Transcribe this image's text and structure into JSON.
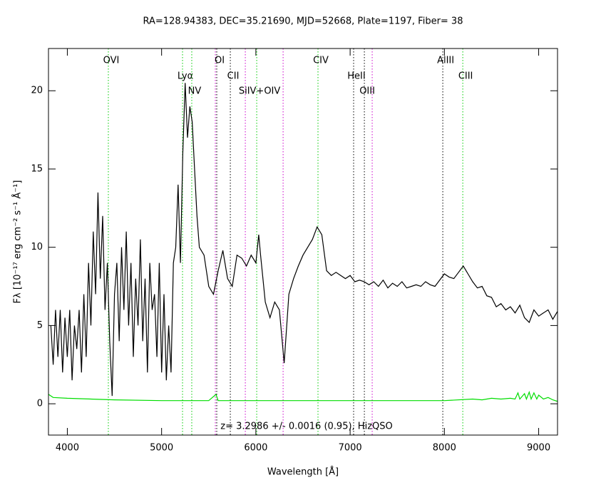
{
  "chart_data": {
    "type": "line",
    "title": "RA=128.94383, DEC=35.21690, MJD=52668, Plate=1197, Fiber= 38",
    "x_label": "Wavelength [Å]",
    "y_label": "Fλ [10⁻¹⁷ erg cm⁻² s⁻¹ Å⁻¹]",
    "annotation": "z= 3.2986 +/- 0.0016 (0.95), HizQSO",
    "xlim": [
      3800,
      9200
    ],
    "ylim": [
      -2,
      22.7
    ],
    "xticks": [
      4000,
      5000,
      6000,
      7000,
      8000,
      9000
    ],
    "yticks": [
      0,
      5,
      10,
      15,
      20
    ],
    "series": [
      {
        "color": "#000000",
        "x": [
          3825,
          3850,
          3875,
          3900,
          3925,
          3950,
          3975,
          4000,
          4025,
          4050,
          4075,
          4100,
          4125,
          4150,
          4175,
          4200,
          4225,
          4250,
          4275,
          4300,
          4325,
          4350,
          4375,
          4400,
          4425,
          4450,
          4475,
          4500,
          4525,
          4550,
          4575,
          4600,
          4625,
          4650,
          4675,
          4700,
          4725,
          4750,
          4775,
          4800,
          4825,
          4850,
          4875,
          4900,
          4925,
          4950,
          4975,
          5000,
          5025,
          5050,
          5075,
          5100,
          5125,
          5150,
          5175,
          5200,
          5225,
          5250,
          5275,
          5300,
          5325,
          5350,
          5375,
          5400,
          5450,
          5500,
          5550,
          5600,
          5650,
          5700,
          5750,
          5800,
          5850,
          5900,
          5950,
          6000,
          6030,
          6050,
          6100,
          6150,
          6200,
          6250,
          6300,
          6350,
          6400,
          6450,
          6500,
          6550,
          6600,
          6650,
          6700,
          6750,
          6800,
          6850,
          6900,
          6950,
          7000,
          7050,
          7100,
          7150,
          7200,
          7250,
          7300,
          7350,
          7400,
          7450,
          7500,
          7550,
          7600,
          7650,
          7700,
          7750,
          7800,
          7850,
          7900,
          7950,
          8000,
          8050,
          8100,
          8150,
          8200,
          8250,
          8300,
          8350,
          8400,
          8450,
          8500,
          8550,
          8600,
          8650,
          8700,
          8750,
          8800,
          8850,
          8900,
          8950,
          9000,
          9050,
          9100,
          9150,
          9200
        ],
        "values": [
          5,
          2.5,
          6,
          3,
          6,
          2,
          5.5,
          3,
          6,
          1.5,
          5,
          3.5,
          6,
          2,
          7,
          3,
          9,
          5,
          11,
          7,
          13.5,
          8,
          12,
          6,
          9,
          4,
          0.5,
          7,
          9,
          4,
          10,
          6,
          11,
          5,
          9,
          3,
          8,
          5,
          10.5,
          4,
          8,
          2,
          9,
          6,
          7,
          3,
          9,
          2,
          7,
          1.5,
          5,
          2,
          9,
          10,
          14,
          9,
          16,
          20.5,
          17,
          19,
          18,
          15,
          12,
          10,
          9.5,
          7.5,
          7,
          8.5,
          9.8,
          8,
          7.5,
          9.5,
          9.3,
          8.8,
          9.5,
          9,
          10.8,
          9.5,
          6.5,
          5.5,
          6.5,
          6,
          2.6,
          7,
          8,
          8.8,
          9.5,
          10,
          10.5,
          11.3,
          10.8,
          8.5,
          8.2,
          8.4,
          8.2,
          8,
          8.2,
          7.8,
          7.9,
          7.8,
          7.6,
          7.8,
          7.5,
          7.9,
          7.4,
          7.7,
          7.5,
          7.8,
          7.4,
          7.5,
          7.6,
          7.5,
          7.8,
          7.6,
          7.5,
          7.9,
          8.3,
          8.1,
          8,
          8.4,
          8.8,
          8.3,
          7.8,
          7.4,
          7.5,
          6.9,
          6.8,
          6.2,
          6.4,
          6,
          6.2,
          5.8,
          6.3,
          5.5,
          5.2,
          6,
          5.6,
          5.8,
          6,
          5.4,
          5.9
        ]
      },
      {
        "color": "#00dd00",
        "x": [
          3800,
          3850,
          4000,
          4500,
          5000,
          5500,
          5577,
          5600,
          6000,
          7000,
          8000,
          8300,
          8400,
          8500,
          8600,
          8700,
          8750,
          8780,
          8800,
          8850,
          8870,
          8900,
          8920,
          8950,
          8980,
          9000,
          9050,
          9100,
          9150,
          9200
        ],
        "values": [
          0.6,
          0.4,
          0.35,
          0.25,
          0.2,
          0.2,
          0.6,
          0.2,
          0.2,
          0.2,
          0.2,
          0.3,
          0.25,
          0.35,
          0.3,
          0.35,
          0.3,
          0.7,
          0.3,
          0.65,
          0.3,
          0.75,
          0.3,
          0.7,
          0.3,
          0.55,
          0.3,
          0.4,
          0.25,
          0.15
        ]
      }
    ],
    "lines": [
      {
        "x": 4435,
        "color": "#00cc00",
        "label": "OVI"
      },
      {
        "x": 5222,
        "color": "#00cc00",
        "label": "Lyα"
      },
      {
        "x": 5320,
        "color": "#00cc00",
        "label": "NV"
      },
      {
        "x": 5570,
        "color": "#cc00cc"
      },
      {
        "x": 5585,
        "color": "#000000",
        "label": "OI"
      },
      {
        "x": 5729,
        "color": "#000000",
        "label": "CII"
      },
      {
        "x": 5888,
        "color": "#cc00cc"
      },
      {
        "x": 6009,
        "color": "#00cc00",
        "label": "SiIV+OIV"
      },
      {
        "x": 6289,
        "color": "#cc00cc"
      },
      {
        "x": 6659,
        "color": "#00cc00",
        "label": "CIV"
      },
      {
        "x": 7037,
        "color": "#000000",
        "label": "HeII"
      },
      {
        "x": 7151,
        "color": "#000000",
        "label": "OIII"
      },
      {
        "x": 7234,
        "color": "#cc00cc"
      },
      {
        "x": 7983,
        "color": "#000000",
        "label": "AlIII"
      },
      {
        "x": 8195,
        "color": "#00cc00",
        "label": "CIII"
      }
    ]
  }
}
